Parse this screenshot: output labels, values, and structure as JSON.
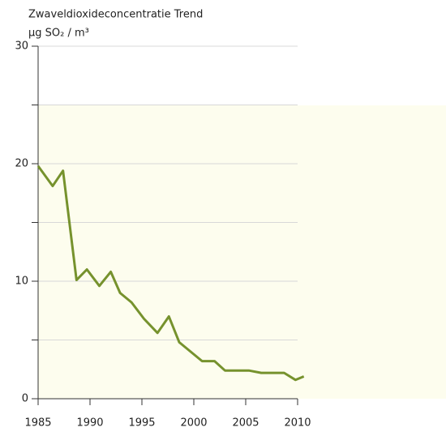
{
  "chart_data": {
    "type": "line",
    "title": "Zwaveldioxideconcentratie Trend",
    "y_label": "µg SO₂ / m³",
    "x": [
      1985.0,
      1986.4,
      1987.4,
      1988.7,
      1989.7,
      1990.9,
      1992.0,
      1992.9,
      1994.0,
      1995.2,
      1996.5,
      1997.6,
      1998.6,
      1999.7,
      2000.8,
      2002.0,
      2003.0,
      2004.1,
      2005.3,
      2006.5,
      2007.6,
      2008.7,
      2009.8,
      2010.6
    ],
    "series": [
      {
        "color": "#76922d",
        "values": [
          19.8,
          18.1,
          19.4,
          10.1,
          11.0,
          9.6,
          10.8,
          9.0,
          8.2,
          6.8,
          5.6,
          7.0,
          4.8,
          4.0,
          3.2,
          3.2,
          2.4,
          2.4,
          2.4,
          2.2,
          2.2,
          2.2,
          1.6,
          1.9
        ]
      }
    ],
    "xlim": [
      1985,
      2010
    ],
    "xticks": [
      1985,
      1990,
      1995,
      2000,
      2005,
      2010
    ],
    "ylim": [
      0,
      30
    ],
    "yticks": [
      0,
      10,
      20,
      30
    ],
    "minor_yticks": [
      5,
      15,
      25
    ],
    "grid": true
  }
}
